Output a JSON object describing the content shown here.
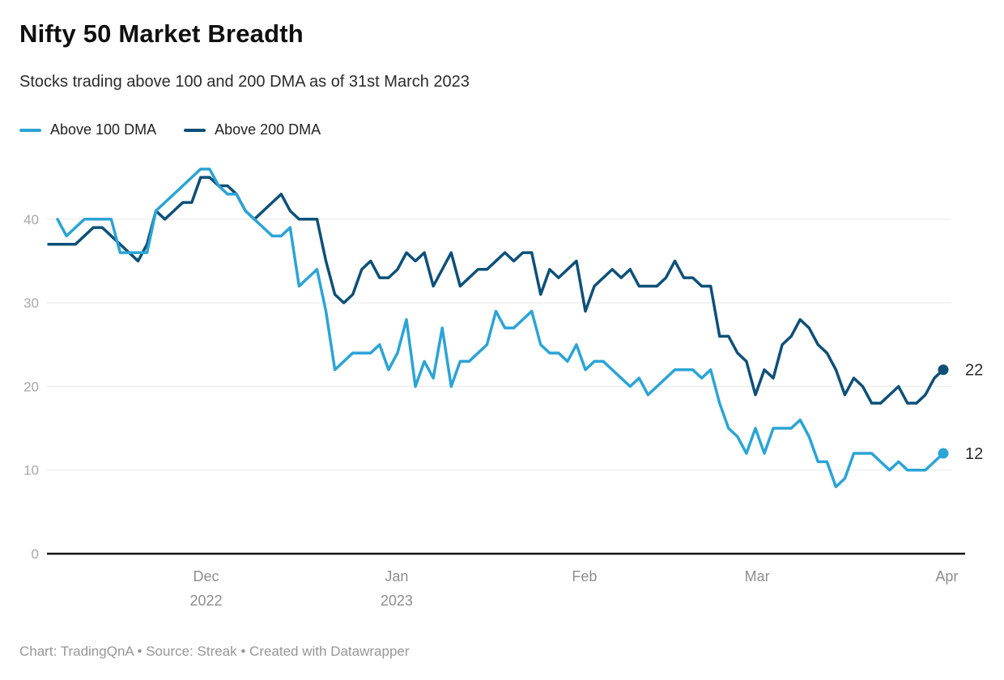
{
  "footer": {
    "credit": "Chart: TradingQnA • Source: Streak • Created with Datawrapper"
  },
  "colors": {
    "above_100_dma": "#2ba4d6",
    "above_200_dma": "#0d5078",
    "gridline": "#e9e9e9",
    "axis_line": "#141414",
    "y_tick_label": "#a8a8a8",
    "x_tick_label": "#8d8d8d",
    "end_value_label": "#2a2a2a"
  },
  "chart_data": {
    "type": "line",
    "title": "Nifty 50 Market Breadth",
    "subtitle": "Stocks trading above 100 and 200 DMA as of 31st March 2023",
    "x_unit": "trading days, Nov 2022 – Mar 2023",
    "grid": "horizontal",
    "legend_position": "top-left",
    "y_axis": {
      "ticks": [
        0,
        10,
        20,
        30,
        40
      ],
      "range": [
        0,
        47
      ]
    },
    "x_axis": {
      "ticks": [
        {
          "label": "Dec",
          "sublabel": "2022",
          "index": 17.6
        },
        {
          "label": "Jan",
          "sublabel": "2023",
          "index": 38.9
        },
        {
          "label": "Feb",
          "sublabel": "",
          "index": 59.9
        },
        {
          "label": "Mar",
          "sublabel": "",
          "index": 79.2
        },
        {
          "label": "Apr",
          "sublabel": "",
          "index": 100.4
        }
      ]
    },
    "series": [
      {
        "name": "Above 100 DMA",
        "color_key": "above_100_dma",
        "end_label": "12",
        "values": [
          null,
          40,
          38,
          39,
          40,
          40,
          40,
          40,
          36,
          36,
          36,
          36,
          41,
          42,
          43,
          44,
          45,
          46,
          46,
          44,
          43,
          43,
          41,
          40,
          39,
          38,
          38,
          39,
          32,
          33,
          34,
          29,
          22,
          23,
          24,
          24,
          24,
          25,
          22,
          24,
          28,
          20,
          23,
          21,
          27,
          20,
          23,
          23,
          24,
          25,
          29,
          27,
          27,
          28,
          29,
          25,
          24,
          24,
          23,
          25,
          22,
          23,
          23,
          22,
          21,
          20,
          21,
          19,
          20,
          21,
          22,
          22,
          22,
          21,
          22,
          18,
          15,
          14,
          12,
          15,
          12,
          15,
          15,
          15,
          16,
          14,
          11,
          11,
          8,
          9,
          12,
          12,
          12,
          11,
          10,
          11,
          10,
          10,
          10,
          11,
          12
        ]
      },
      {
        "name": "Above 200 DMA",
        "color_key": "above_200_dma",
        "end_label": "22",
        "values": [
          37,
          37,
          37,
          37,
          38,
          39,
          39,
          38,
          37,
          36,
          35,
          37,
          41,
          40,
          41,
          42,
          42,
          45,
          45,
          44,
          44,
          43,
          41,
          40,
          41,
          42,
          43,
          41,
          40,
          40,
          40,
          35,
          31,
          30,
          31,
          34,
          35,
          33,
          33,
          34,
          36,
          35,
          36,
          32,
          34,
          36,
          32,
          33,
          34,
          34,
          35,
          36,
          35,
          36,
          36,
          31,
          34,
          33,
          34,
          35,
          29,
          32,
          33,
          34,
          33,
          34,
          32,
          32,
          32,
          33,
          35,
          33,
          33,
          32,
          32,
          26,
          26,
          24,
          23,
          19,
          22,
          21,
          25,
          26,
          28,
          27,
          25,
          24,
          22,
          19,
          21,
          20,
          18,
          18,
          19,
          20,
          18,
          18,
          19,
          21,
          22
        ]
      }
    ]
  }
}
